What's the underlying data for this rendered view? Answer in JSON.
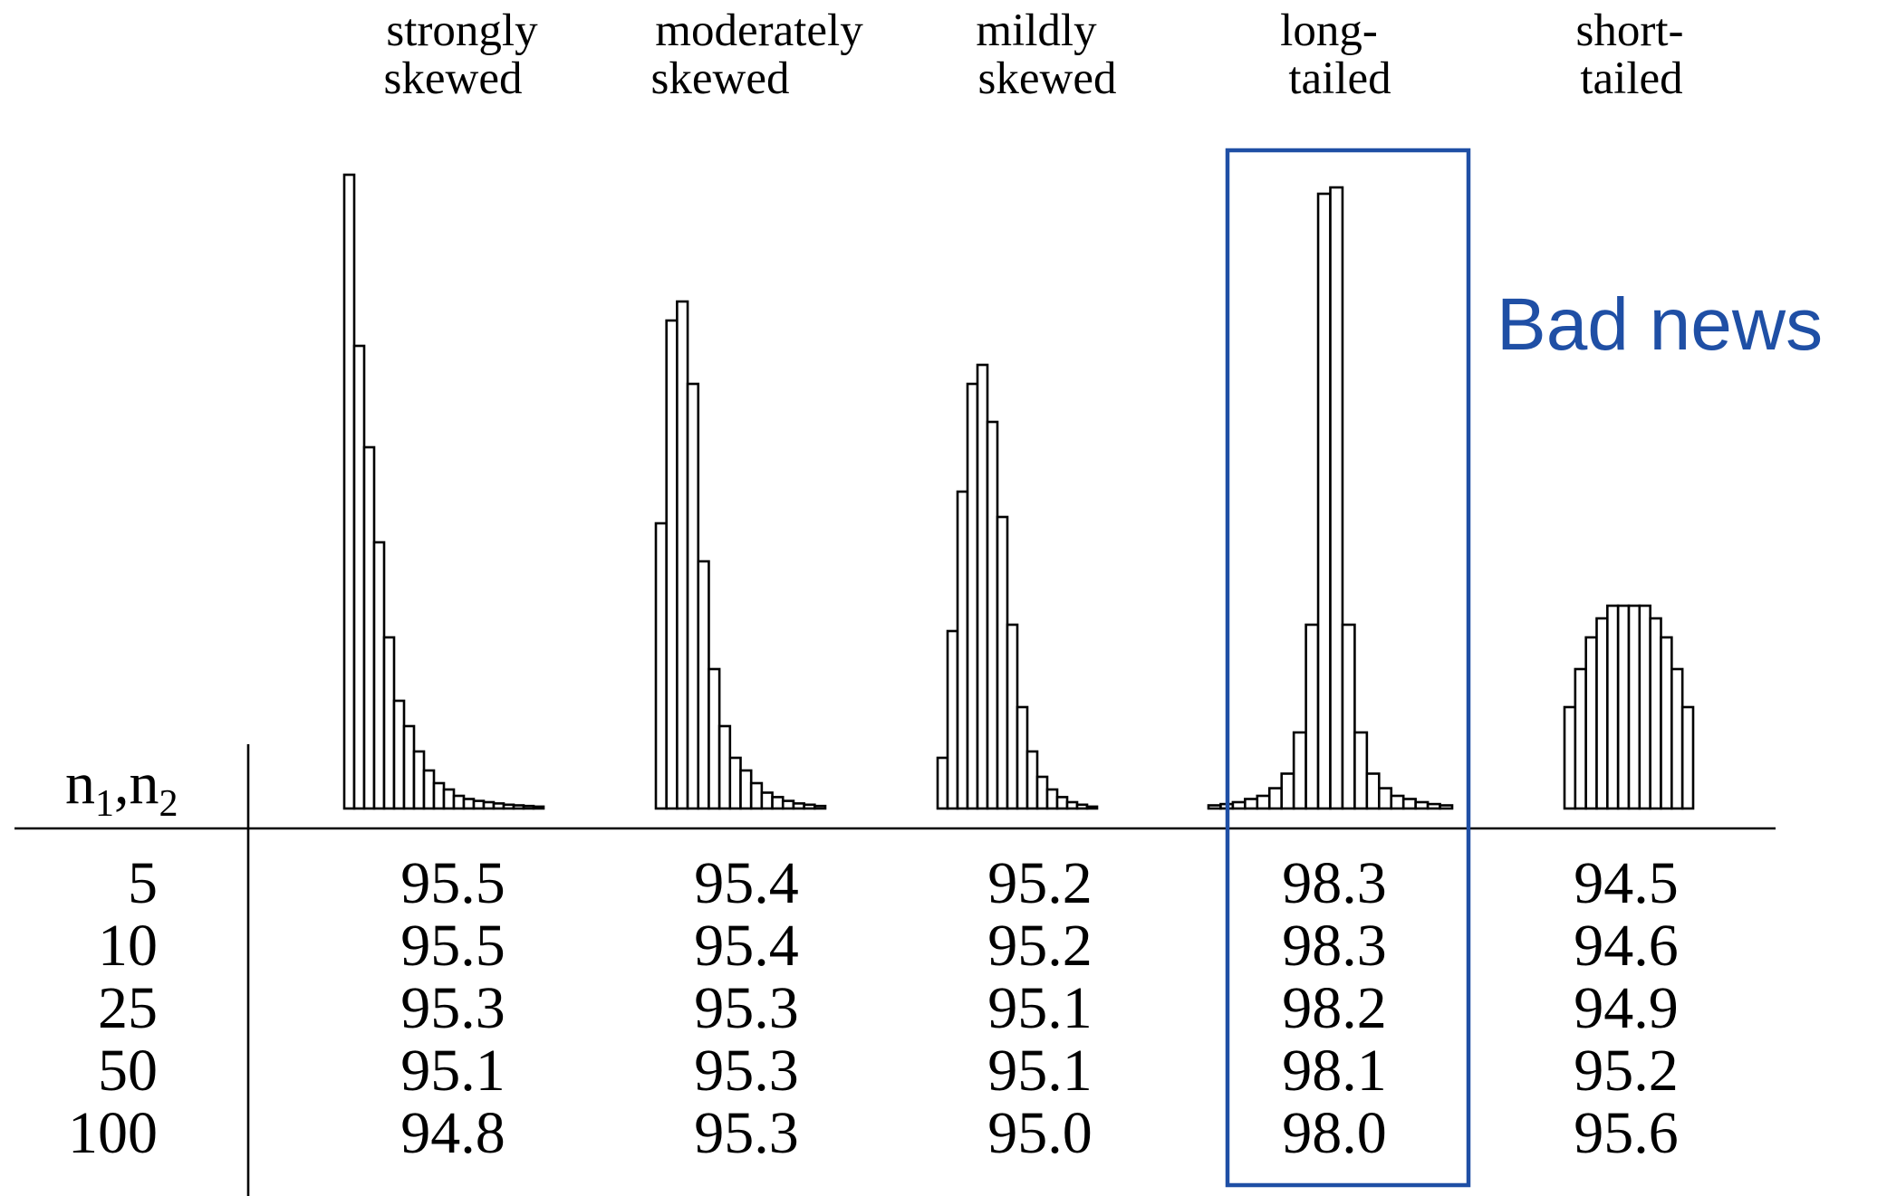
{
  "chart_data": {
    "type": "table",
    "row_header": "n1,n2",
    "row_labels": [
      "5",
      "10",
      "25",
      "50",
      "100"
    ],
    "columns": [
      {
        "header": [
          "strongly",
          "skewed"
        ],
        "histogram": [
          1.0,
          0.73,
          0.57,
          0.42,
          0.27,
          0.17,
          0.13,
          0.09,
          0.06,
          0.04,
          0.03,
          0.02,
          0.015,
          0.012,
          0.01,
          0.008,
          0.006,
          0.005,
          0.004,
          0.003
        ],
        "values": [
          "95.5",
          "95.5",
          "95.3",
          "95.1",
          "94.8"
        ]
      },
      {
        "header": [
          "moderately",
          "skewed"
        ],
        "histogram": [
          0.45,
          0.77,
          0.8,
          0.67,
          0.39,
          0.22,
          0.13,
          0.08,
          0.06,
          0.04,
          0.025,
          0.018,
          0.012,
          0.008,
          0.006,
          0.004
        ],
        "values": [
          "95.4",
          "95.4",
          "95.3",
          "95.3",
          "95.3"
        ]
      },
      {
        "header": [
          "mildly",
          "skewed"
        ],
        "histogram": [
          0.08,
          0.28,
          0.5,
          0.67,
          0.7,
          0.61,
          0.46,
          0.29,
          0.16,
          0.09,
          0.05,
          0.03,
          0.018,
          0.01,
          0.006,
          0.003
        ],
        "values": [
          "95.2",
          "95.2",
          "95.1",
          "95.1",
          "95.0"
        ]
      },
      {
        "header": [
          "long-",
          "tailed"
        ],
        "histogram": [
          0.005,
          0.007,
          0.01,
          0.015,
          0.02,
          0.032,
          0.055,
          0.12,
          0.29,
          0.97,
          0.98,
          0.29,
          0.12,
          0.055,
          0.032,
          0.02,
          0.015,
          0.01,
          0.007,
          0.005
        ],
        "values": [
          "98.3",
          "98.3",
          "98.2",
          "98.1",
          "98.0"
        ]
      },
      {
        "header": [
          "short-",
          "tailed"
        ],
        "histogram": [
          0.16,
          0.22,
          0.27,
          0.3,
          0.32,
          0.32,
          0.32,
          0.32,
          0.3,
          0.27,
          0.22,
          0.16
        ],
        "values": [
          "94.5",
          "94.6",
          "94.9",
          "95.2",
          "95.6"
        ]
      }
    ],
    "highlight_column": 3,
    "annotation": "Bad news",
    "annotation_color": "#1f4fa5",
    "grid": false
  }
}
